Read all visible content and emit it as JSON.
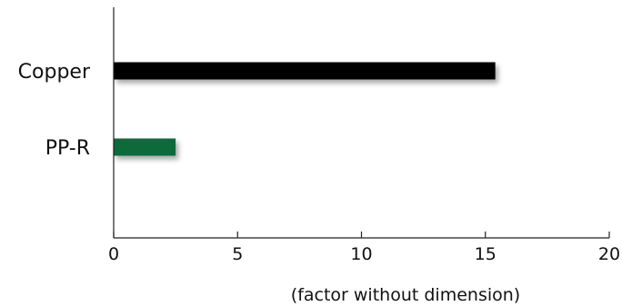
{
  "chart_data": {
    "type": "bar",
    "orientation": "horizontal",
    "categories": [
      "Copper",
      "PP-R"
    ],
    "values": [
      15.4,
      2.5
    ],
    "colors": [
      "#000000",
      "#0b6b3a"
    ],
    "xlabel": "(factor without dimension)",
    "ylabel": "",
    "xlim": [
      0,
      20
    ],
    "xticks": [
      0,
      5,
      10,
      15,
      20
    ],
    "grid": false,
    "legend": "none"
  }
}
